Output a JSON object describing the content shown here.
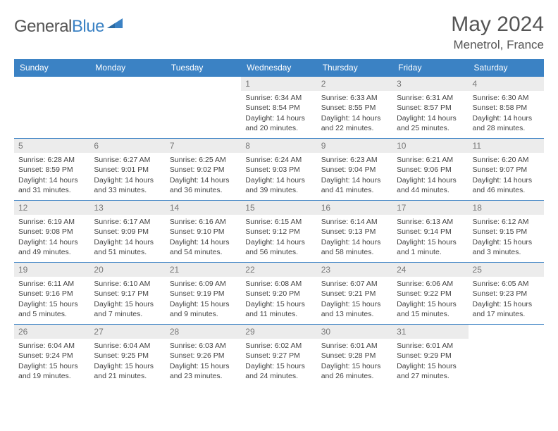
{
  "logo": {
    "word1": "General",
    "word2": "Blue"
  },
  "title": "May 2024",
  "location": "Menetrol, France",
  "colors": {
    "header_bg": "#3b82c4",
    "header_text": "#ffffff",
    "border": "#3b82c4",
    "daynum_bg": "#ececec",
    "daynum_text": "#777777",
    "body_text": "#444444",
    "title_text": "#555555"
  },
  "day_headers": [
    "Sunday",
    "Monday",
    "Tuesday",
    "Wednesday",
    "Thursday",
    "Friday",
    "Saturday"
  ],
  "weeks": [
    [
      null,
      null,
      null,
      {
        "n": "1",
        "sr": "6:34 AM",
        "ss": "8:54 PM",
        "dl": "14 hours and 20 minutes."
      },
      {
        "n": "2",
        "sr": "6:33 AM",
        "ss": "8:55 PM",
        "dl": "14 hours and 22 minutes."
      },
      {
        "n": "3",
        "sr": "6:31 AM",
        "ss": "8:57 PM",
        "dl": "14 hours and 25 minutes."
      },
      {
        "n": "4",
        "sr": "6:30 AM",
        "ss": "8:58 PM",
        "dl": "14 hours and 28 minutes."
      }
    ],
    [
      {
        "n": "5",
        "sr": "6:28 AM",
        "ss": "8:59 PM",
        "dl": "14 hours and 31 minutes."
      },
      {
        "n": "6",
        "sr": "6:27 AM",
        "ss": "9:01 PM",
        "dl": "14 hours and 33 minutes."
      },
      {
        "n": "7",
        "sr": "6:25 AM",
        "ss": "9:02 PM",
        "dl": "14 hours and 36 minutes."
      },
      {
        "n": "8",
        "sr": "6:24 AM",
        "ss": "9:03 PM",
        "dl": "14 hours and 39 minutes."
      },
      {
        "n": "9",
        "sr": "6:23 AM",
        "ss": "9:04 PM",
        "dl": "14 hours and 41 minutes."
      },
      {
        "n": "10",
        "sr": "6:21 AM",
        "ss": "9:06 PM",
        "dl": "14 hours and 44 minutes."
      },
      {
        "n": "11",
        "sr": "6:20 AM",
        "ss": "9:07 PM",
        "dl": "14 hours and 46 minutes."
      }
    ],
    [
      {
        "n": "12",
        "sr": "6:19 AM",
        "ss": "9:08 PM",
        "dl": "14 hours and 49 minutes."
      },
      {
        "n": "13",
        "sr": "6:17 AM",
        "ss": "9:09 PM",
        "dl": "14 hours and 51 minutes."
      },
      {
        "n": "14",
        "sr": "6:16 AM",
        "ss": "9:10 PM",
        "dl": "14 hours and 54 minutes."
      },
      {
        "n": "15",
        "sr": "6:15 AM",
        "ss": "9:12 PM",
        "dl": "14 hours and 56 minutes."
      },
      {
        "n": "16",
        "sr": "6:14 AM",
        "ss": "9:13 PM",
        "dl": "14 hours and 58 minutes."
      },
      {
        "n": "17",
        "sr": "6:13 AM",
        "ss": "9:14 PM",
        "dl": "15 hours and 1 minute."
      },
      {
        "n": "18",
        "sr": "6:12 AM",
        "ss": "9:15 PM",
        "dl": "15 hours and 3 minutes."
      }
    ],
    [
      {
        "n": "19",
        "sr": "6:11 AM",
        "ss": "9:16 PM",
        "dl": "15 hours and 5 minutes."
      },
      {
        "n": "20",
        "sr": "6:10 AM",
        "ss": "9:17 PM",
        "dl": "15 hours and 7 minutes."
      },
      {
        "n": "21",
        "sr": "6:09 AM",
        "ss": "9:19 PM",
        "dl": "15 hours and 9 minutes."
      },
      {
        "n": "22",
        "sr": "6:08 AM",
        "ss": "9:20 PM",
        "dl": "15 hours and 11 minutes."
      },
      {
        "n": "23",
        "sr": "6:07 AM",
        "ss": "9:21 PM",
        "dl": "15 hours and 13 minutes."
      },
      {
        "n": "24",
        "sr": "6:06 AM",
        "ss": "9:22 PM",
        "dl": "15 hours and 15 minutes."
      },
      {
        "n": "25",
        "sr": "6:05 AM",
        "ss": "9:23 PM",
        "dl": "15 hours and 17 minutes."
      }
    ],
    [
      {
        "n": "26",
        "sr": "6:04 AM",
        "ss": "9:24 PM",
        "dl": "15 hours and 19 minutes."
      },
      {
        "n": "27",
        "sr": "6:04 AM",
        "ss": "9:25 PM",
        "dl": "15 hours and 21 minutes."
      },
      {
        "n": "28",
        "sr": "6:03 AM",
        "ss": "9:26 PM",
        "dl": "15 hours and 23 minutes."
      },
      {
        "n": "29",
        "sr": "6:02 AM",
        "ss": "9:27 PM",
        "dl": "15 hours and 24 minutes."
      },
      {
        "n": "30",
        "sr": "6:01 AM",
        "ss": "9:28 PM",
        "dl": "15 hours and 26 minutes."
      },
      {
        "n": "31",
        "sr": "6:01 AM",
        "ss": "9:29 PM",
        "dl": "15 hours and 27 minutes."
      },
      null
    ]
  ],
  "labels": {
    "sunrise": "Sunrise:",
    "sunset": "Sunset:",
    "daylight": "Daylight:"
  }
}
